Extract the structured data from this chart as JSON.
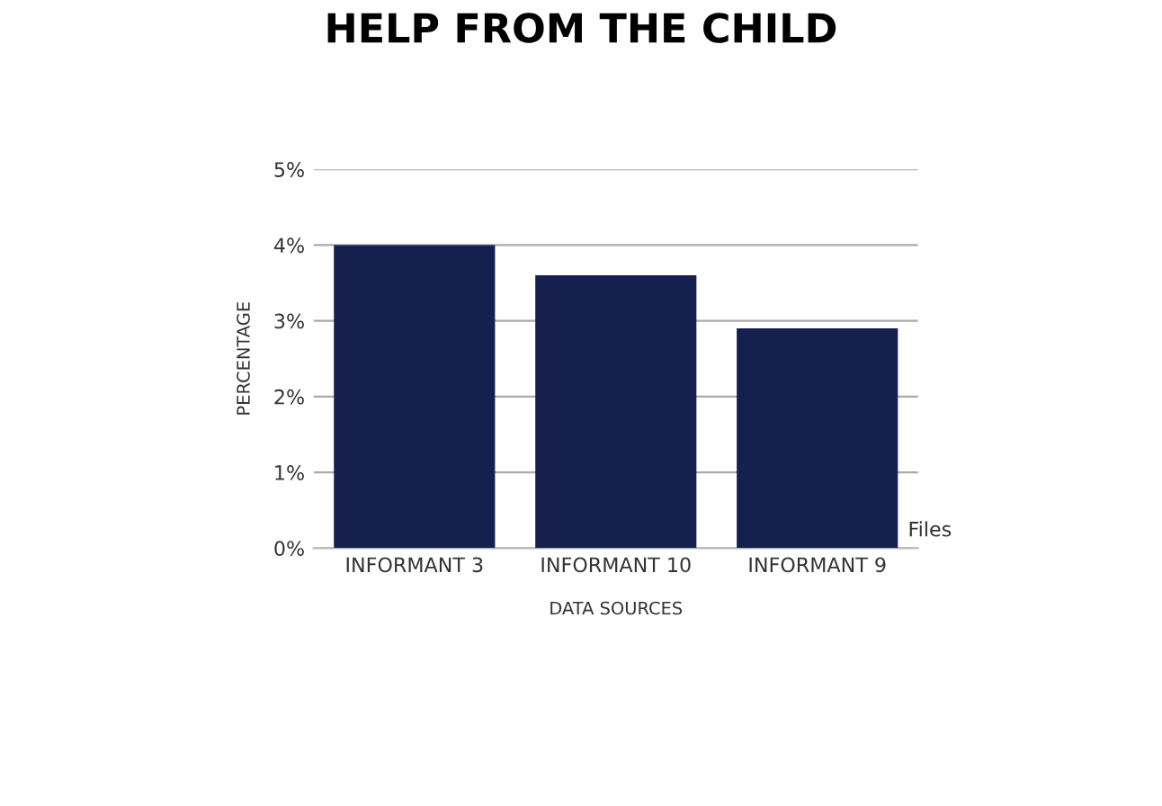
{
  "chart_data": {
    "type": "bar",
    "title": "HELP FROM THE CHILD",
    "xlabel": "DATA SOURCES",
    "ylabel": "PERCENTAGE",
    "categories": [
      "INFORMANT 3",
      "INFORMANT 10",
      "INFORMANT 9"
    ],
    "series": [
      {
        "name": "Files",
        "color": "#16204f",
        "values": [
          4.0,
          3.6,
          2.9
        ]
      }
    ],
    "ylim": [
      0,
      5
    ],
    "yticks": [
      {
        "value": 0,
        "label": "0%"
      },
      {
        "value": 1,
        "label": "1%"
      },
      {
        "value": 2,
        "label": "2%"
      },
      {
        "value": 3,
        "label": "3%"
      },
      {
        "value": 4,
        "label": "4%"
      },
      {
        "value": 5,
        "label": "5%"
      }
    ],
    "grid": "y"
  }
}
